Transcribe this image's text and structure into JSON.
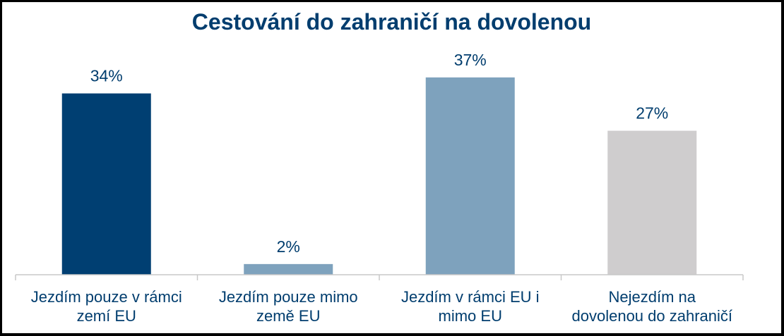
{
  "chart_data": {
    "type": "bar",
    "title": "Cestování do zahraničí na dovolenou",
    "categories": [
      [
        "Jezdím pouze v rámci",
        "zemí EU"
      ],
      [
        "Jezdím pouze mimo",
        "země EU"
      ],
      [
        "Jezdím v rámci EU i",
        "mimo EU"
      ],
      [
        "Nejezdím na",
        "dovolenou do zahraničí"
      ]
    ],
    "values": [
      34,
      2,
      37,
      27
    ],
    "value_labels": [
      "34%",
      "2%",
      "37%",
      "27%"
    ],
    "colors": [
      "#003f72",
      "#7ea2bd",
      "#7ea2bd",
      "#cfcdce"
    ],
    "ylim": [
      0,
      40
    ],
    "xlabel": "",
    "ylabel": "",
    "grid": false,
    "legend": "none"
  }
}
